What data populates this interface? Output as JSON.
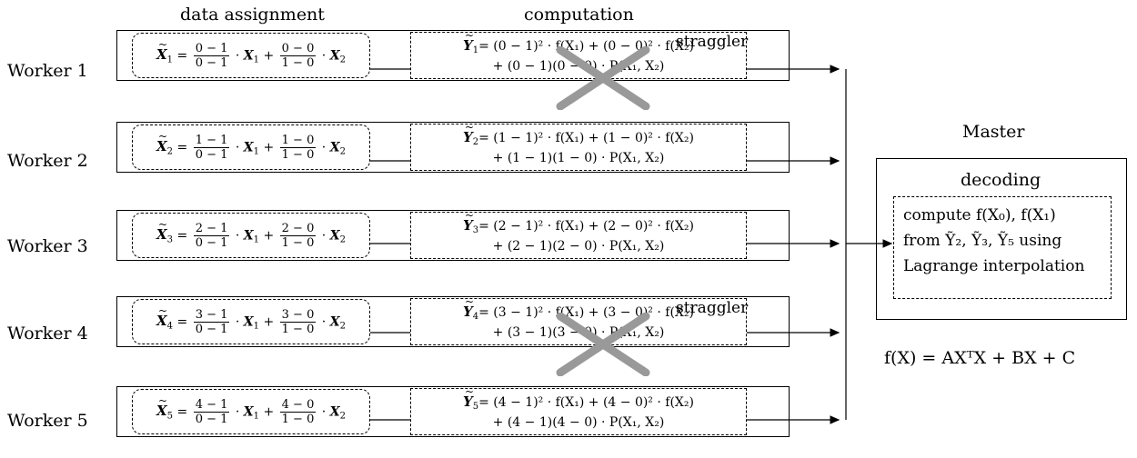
{
  "headers": {
    "data_assignment": "data assignment",
    "computation": "computation"
  },
  "workers": [
    {
      "label": "Worker 1",
      "tilde_x": "X",
      "index": "1",
      "frac1": {
        "num": "0 − 1",
        "den": "0 − 1"
      },
      "frac2": {
        "num": "0 − 0",
        "den": "1 − 0"
      },
      "comp_line1": "= (0 − 1)² · f(X₁) + (0 − 0)² · f(X₂)",
      "comp_line2": "+ (0 − 1)(0 − 0) · P(X₁, X₂)",
      "straggler": true
    },
    {
      "label": "Worker 2",
      "tilde_x": "X",
      "index": "2",
      "frac1": {
        "num": "1 − 1",
        "den": "0 − 1"
      },
      "frac2": {
        "num": "1 − 0",
        "den": "1 − 0"
      },
      "comp_line1": "= (1 − 1)² · f(X₁) + (1 − 0)² · f(X₂)",
      "comp_line2": "+ (1 − 1)(1 − 0) · P(X₁, X₂)",
      "straggler": false
    },
    {
      "label": "Worker 3",
      "tilde_x": "X",
      "index": "3",
      "frac1": {
        "num": "2 − 1",
        "den": "0 − 1"
      },
      "frac2": {
        "num": "2 − 0",
        "den": "1 − 0"
      },
      "comp_line1": "= (2 − 1)² · f(X₁) + (2 − 0)² · f(X₂)",
      "comp_line2": "+ (2 − 1)(2 − 0) · P(X₁, X₂)",
      "straggler": false
    },
    {
      "label": "Worker 4",
      "tilde_x": "X",
      "index": "4",
      "frac1": {
        "num": "3 − 1",
        "den": "0 − 1"
      },
      "frac2": {
        "num": "3 − 0",
        "den": "1 − 0"
      },
      "comp_line1": "= (3 − 1)² · f(X₁) + (3 − 0)² · f(X₂)",
      "comp_line2": "+ (3 − 1)(3 − 0) · P(X₁, X₂)",
      "straggler": true
    },
    {
      "label": "Worker 5",
      "tilde_x": "X",
      "index": "5",
      "frac1": {
        "num": "4 − 1",
        "den": "0 − 1"
      },
      "frac2": {
        "num": "4 − 0",
        "den": "1 − 0"
      },
      "comp_line1": "= (4 − 1)² · f(X₁) + (4 − 0)² · f(X₂)",
      "comp_line2": "+ (4 − 1)(4 − 0) · P(X₁, X₂)",
      "straggler": false
    }
  ],
  "straggler_label": "straggler",
  "master": {
    "title": "Master",
    "decoding": "decoding",
    "lines": [
      "compute f(X₀), f(X₁)",
      "from Ỹ₂, Ỹ₃, Ỹ₅ using",
      "Lagrange interpolation"
    ]
  },
  "formula": "f(X) = AXᵀX + BX + C"
}
